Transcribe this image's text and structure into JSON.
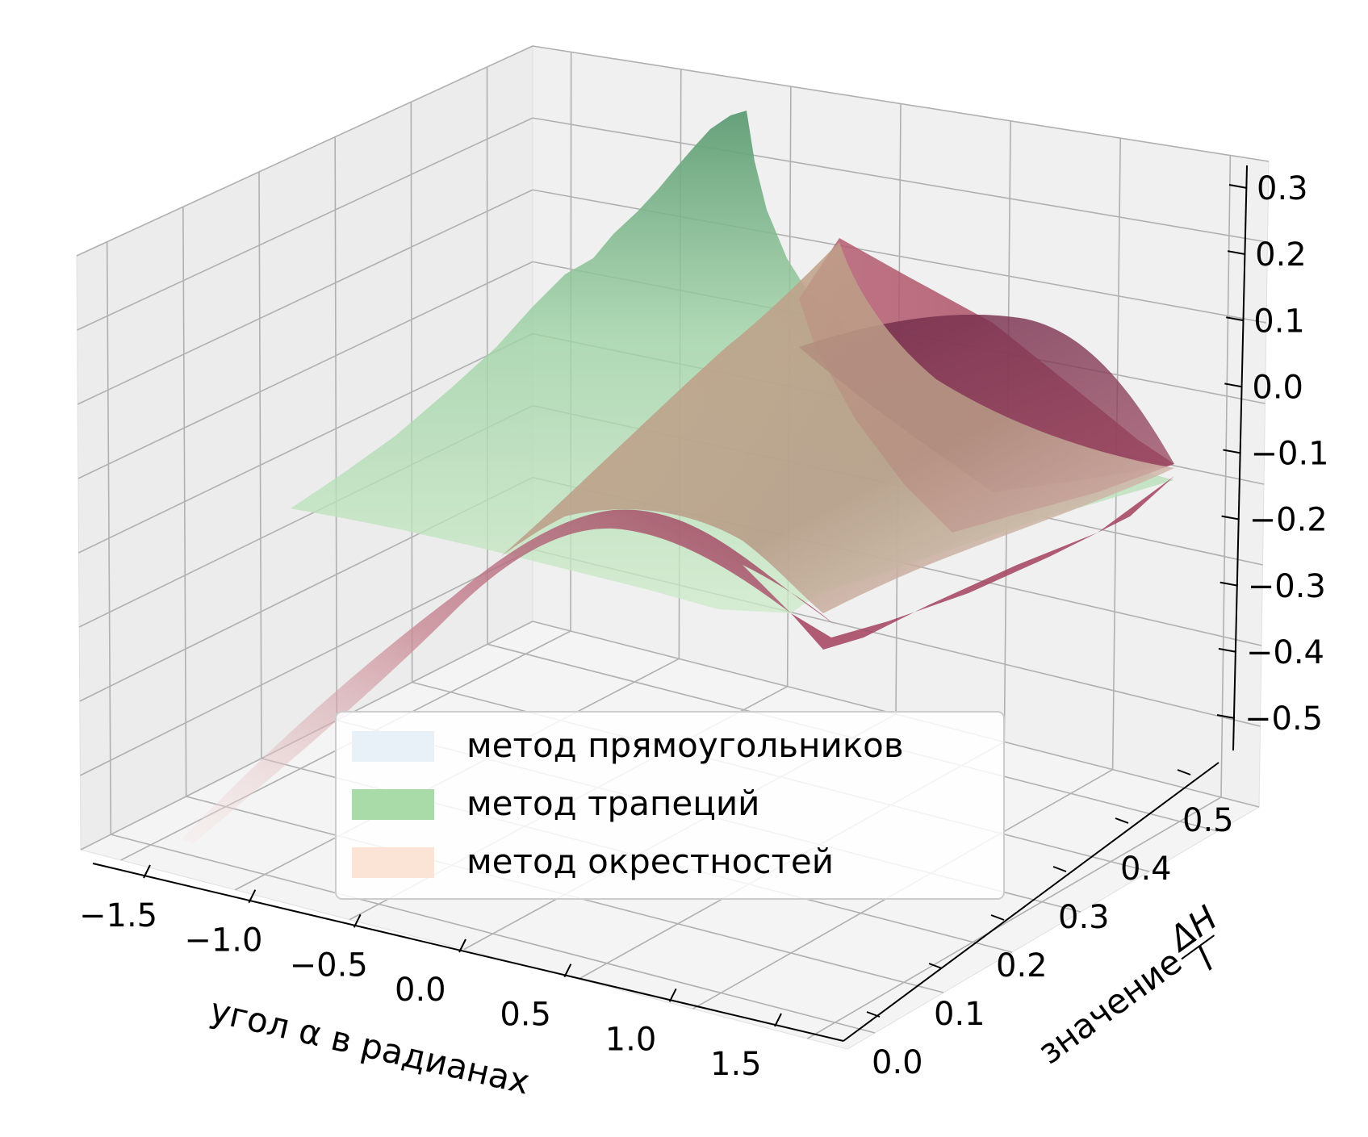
{
  "chart_data": {
    "type": "surface3d",
    "xlabel": "угол α в радианах",
    "ylabel_prefix": "значение",
    "ylabel_frac": {
      "num": "ΔH",
      "den": "l"
    },
    "x_ticks": [
      "−1.5",
      "−1.0",
      "−0.5",
      "0.0",
      "0.5",
      "1.0",
      "1.5"
    ],
    "y_ticks": [
      "0.0",
      "0.1",
      "0.2",
      "0.3",
      "0.4",
      "0.5"
    ],
    "z_ticks": [
      "0.3",
      "0.2",
      "0.1",
      "0.0",
      "−0.1",
      "−0.2",
      "−0.3",
      "−0.4",
      "−0.5"
    ],
    "xlim": [
      -1.57,
      1.57
    ],
    "ylim": [
      0.0,
      0.5
    ],
    "zlim": [
      -0.5,
      0.3
    ],
    "grid": true,
    "legend_position": "lower-center",
    "series": [
      {
        "name": "метод прямоугольников",
        "color": "#e8f0f8"
      },
      {
        "name": "метод трапеций",
        "color": "#a8dba8"
      },
      {
        "name": "метод окрестностей",
        "color": "#fbe3d6"
      }
    ],
    "colors": {
      "trapezoid_high": "#6aa67e",
      "trapezoid_low": "#c8e8c8",
      "neighborhood_dark": "#8e2f4e",
      "neighborhood_light": "#f4d6d0",
      "pane_fill": "#f2f2f2",
      "grid": "#b0b0b0"
    }
  }
}
